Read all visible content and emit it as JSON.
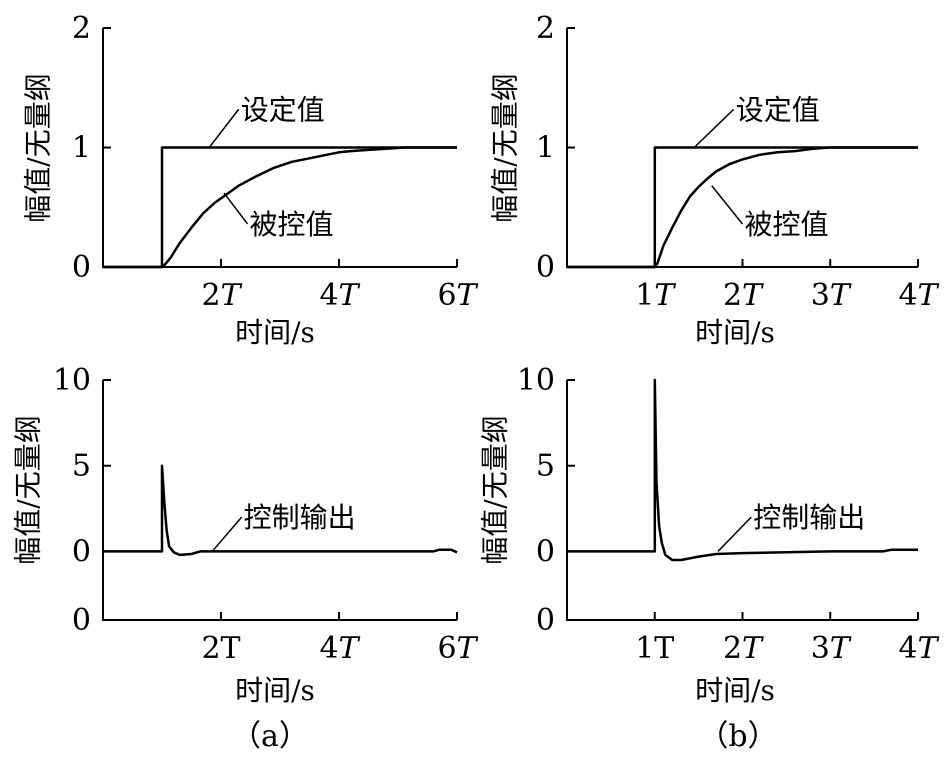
{
  "figure": {
    "panel_a_label": "（a）",
    "panel_b_label": "（b）"
  },
  "chart_data": [
    {
      "id": "a-top",
      "type": "line",
      "ylabel": "幅值/无量纲",
      "xlabel": "时间/s",
      "xlim": [
        0,
        6
      ],
      "ylim": [
        0,
        2
      ],
      "x_ticks": [
        {
          "x": 2,
          "num": "2",
          "unit": "T"
        },
        {
          "x": 4,
          "num": "4",
          "unit": "T"
        },
        {
          "x": 6,
          "num": "6",
          "unit": "T"
        }
      ],
      "y_ticks": [
        {
          "y": 0,
          "label": "0"
        },
        {
          "y": 1,
          "label": "1"
        },
        {
          "y": 2,
          "label": "2"
        }
      ],
      "annotations": [
        {
          "text": "设定值",
          "series": "setpoint",
          "at": [
            1.8,
            1.0
          ],
          "text_at": [
            2.3,
            1.32
          ]
        },
        {
          "text": "被控值",
          "series": "controlled",
          "at": [
            2.05,
            0.62
          ],
          "text_at": [
            2.45,
            0.36
          ]
        }
      ],
      "series": [
        {
          "key": "setpoint",
          "x": [
            0,
            1,
            1,
            6
          ],
          "y": [
            0,
            0,
            1,
            1
          ]
        },
        {
          "key": "controlled",
          "x": [
            0,
            1,
            1.05,
            1.15,
            1.3,
            1.5,
            1.7,
            1.9,
            2.1,
            2.3,
            2.6,
            2.9,
            3.2,
            3.5,
            3.8,
            4.0,
            4.2,
            4.5,
            4.8,
            5.1,
            6.0
          ],
          "y": [
            0,
            0,
            0.02,
            0.08,
            0.2,
            0.33,
            0.45,
            0.54,
            0.61,
            0.68,
            0.76,
            0.83,
            0.88,
            0.91,
            0.94,
            0.96,
            0.97,
            0.98,
            0.99,
            1.0,
            1.0
          ]
        }
      ]
    },
    {
      "id": "b-top",
      "type": "line",
      "ylabel": "幅值/无量纲",
      "xlabel": "时间/s",
      "xlim": [
        0,
        4
      ],
      "ylim": [
        0,
        2
      ],
      "x_ticks": [
        {
          "x": 1,
          "num": "1",
          "unit": "T"
        },
        {
          "x": 2,
          "num": "2",
          "unit": "T"
        },
        {
          "x": 3,
          "num": "3",
          "unit": "T"
        },
        {
          "x": 4,
          "num": "4",
          "unit": "T"
        }
      ],
      "y_ticks": [
        {
          "y": 0,
          "label": "0"
        },
        {
          "y": 1,
          "label": "1"
        },
        {
          "y": 2,
          "label": "2"
        }
      ],
      "annotations": [
        {
          "text": "设定值",
          "series": "setpoint",
          "at": [
            1.45,
            1.0
          ],
          "text_at": [
            1.9,
            1.32
          ]
        },
        {
          "text": "被控值",
          "series": "controlled",
          "at": [
            1.65,
            0.68
          ],
          "text_at": [
            2.0,
            0.36
          ]
        }
      ],
      "series": [
        {
          "key": "setpoint",
          "x": [
            0,
            1,
            1,
            4
          ],
          "y": [
            0,
            0,
            1,
            1
          ]
        },
        {
          "key": "controlled",
          "x": [
            0,
            1,
            1.03,
            1.1,
            1.2,
            1.3,
            1.4,
            1.5,
            1.6,
            1.7,
            1.85,
            2.0,
            2.2,
            2.4,
            2.6,
            2.8,
            3.0,
            4.0
          ],
          "y": [
            0,
            0,
            0.03,
            0.18,
            0.33,
            0.47,
            0.59,
            0.67,
            0.74,
            0.8,
            0.86,
            0.9,
            0.94,
            0.96,
            0.97,
            0.99,
            1.0,
            1.0
          ]
        }
      ]
    },
    {
      "id": "a-bottom",
      "type": "line",
      "ylabel": "幅值/无量纲",
      "xlabel": "时间/s",
      "xlim": [
        0,
        6
      ],
      "ylim": [
        -4,
        10
      ],
      "x_ticks": [
        {
          "x": 2,
          "num": "2",
          "unit": "T",
          "upright": true
        },
        {
          "x": 4,
          "num": "4",
          "unit": "T"
        },
        {
          "x": 6,
          "num": "6",
          "unit": "T"
        }
      ],
      "y_ticks": [
        {
          "y": 0,
          "label": "0"
        },
        {
          "y": 5,
          "label": "5"
        },
        {
          "y": 10,
          "label": "10"
        },
        {
          "y": -4,
          "label": "0",
          "bottom": true
        }
      ],
      "annotations": [
        {
          "text": "控制输出",
          "series": "output",
          "at": [
            1.85,
            0.0
          ],
          "text_at": [
            2.35,
            2.0
          ]
        }
      ],
      "series": [
        {
          "key": "output",
          "x": [
            0,
            1,
            1.0,
            1.04,
            1.08,
            1.12,
            1.2,
            1.3,
            1.5,
            1.65,
            1.8,
            2.0,
            3.0,
            4.0,
            5.0,
            5.6,
            5.7,
            5.9,
            6.0
          ],
          "y": [
            0,
            0,
            5.0,
            2.8,
            1.2,
            0.3,
            -0.05,
            -0.2,
            -0.15,
            0.0,
            0.0,
            0.0,
            0.0,
            0.0,
            0.0,
            0.0,
            0.1,
            0.1,
            -0.05
          ]
        }
      ]
    },
    {
      "id": "b-bottom",
      "type": "line",
      "ylabel": "幅值/无量纲",
      "xlabel": "时间/s",
      "xlim": [
        0,
        4
      ],
      "ylim": [
        -4,
        10
      ],
      "x_ticks": [
        {
          "x": 1,
          "num": "1",
          "unit": "T",
          "upright": true
        },
        {
          "x": 2,
          "num": "2",
          "unit": "T"
        },
        {
          "x": 3,
          "num": "3",
          "unit": "T"
        },
        {
          "x": 4,
          "num": "4",
          "unit": "T"
        }
      ],
      "y_ticks": [
        {
          "y": 0,
          "label": "0"
        },
        {
          "y": 5,
          "label": "5"
        },
        {
          "y": 10,
          "label": "10"
        },
        {
          "y": -4,
          "label": "0",
          "bottom": true
        }
      ],
      "annotations": [
        {
          "text": "控制输出",
          "series": "output",
          "at": [
            1.72,
            0.0
          ],
          "text_at": [
            2.1,
            2.0
          ]
        }
      ],
      "series": [
        {
          "key": "output",
          "x": [
            0,
            1,
            1.0,
            1.02,
            1.05,
            1.08,
            1.12,
            1.2,
            1.3,
            1.5,
            1.7,
            2.0,
            3.0,
            3.6,
            3.7,
            4.0
          ],
          "y": [
            0,
            0,
            10.0,
            4.0,
            1.5,
            0.5,
            -0.2,
            -0.5,
            -0.5,
            -0.3,
            -0.15,
            -0.1,
            0.0,
            0.0,
            0.1,
            0.1
          ]
        }
      ]
    }
  ]
}
